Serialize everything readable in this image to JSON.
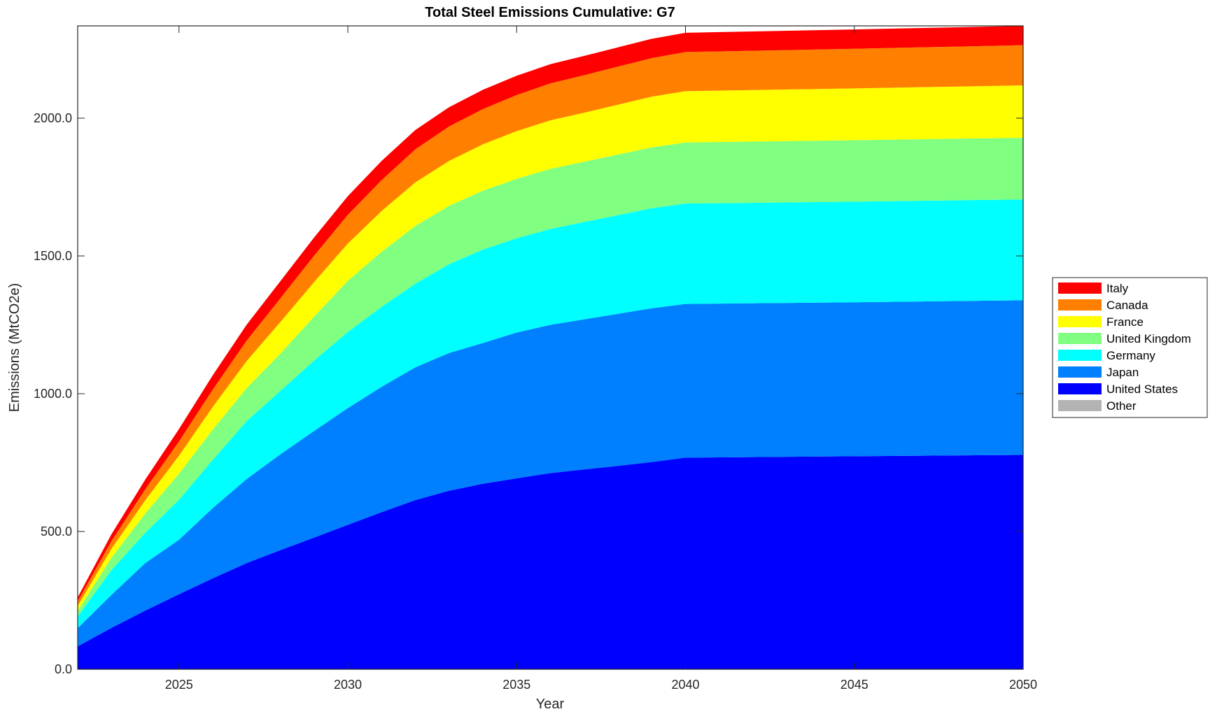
{
  "chart_data": {
    "type": "area",
    "stacked": true,
    "title": "Total Steel Emissions Cumulative: G7",
    "xlabel": "Year",
    "ylabel": "Emissions (MtCO2e)",
    "xlim": [
      2022,
      2050
    ],
    "ylim": [
      0,
      2335
    ],
    "xticks": [
      2025,
      2030,
      2035,
      2040,
      2045,
      2050
    ],
    "xtick_labels": [
      "2025",
      "2030",
      "2035",
      "2040",
      "2045",
      "2050"
    ],
    "yticks": [
      0,
      500,
      1000,
      1500,
      2000
    ],
    "ytick_labels": [
      "0.0",
      "500.0",
      "1000.0",
      "1500.0",
      "2000.0"
    ],
    "grid": false,
    "legend_position": "outside-right",
    "x": [
      2022,
      2023,
      2024,
      2025,
      2026,
      2027,
      2028,
      2029,
      2030,
      2031,
      2032,
      2033,
      2034,
      2035,
      2036,
      2037,
      2038,
      2039,
      2040,
      2045,
      2050
    ],
    "series": [
      {
        "name": "Other",
        "color": "#b3b3b3",
        "values": [
          0,
          0,
          0,
          0,
          0,
          0,
          0,
          0,
          0,
          0,
          0,
          0,
          0,
          0,
          0,
          0,
          0,
          0,
          0,
          0,
          0
        ]
      },
      {
        "name": "United States",
        "color": "#0000ff",
        "values": [
          83,
          150,
          213,
          272,
          330,
          385,
          432,
          478,
          524,
          570,
          614,
          648,
          673,
          693,
          712,
          725,
          738,
          752,
          768,
          773,
          778
        ]
      },
      {
        "name": "Japan",
        "color": "#0080ff",
        "values": [
          66,
          120,
          172,
          198,
          255,
          305,
          348,
          387,
          424,
          455,
          482,
          500,
          511,
          529,
          538,
          545,
          552,
          558,
          558,
          559,
          561
        ]
      },
      {
        "name": "Germany",
        "color": "#00ffff",
        "values": [
          42,
          90,
          110,
          145,
          175,
          210,
          230,
          255,
          276,
          290,
          303,
          322,
          339,
          342,
          348,
          353,
          358,
          363,
          364,
          365,
          366
        ]
      },
      {
        "name": "United Kingdom",
        "color": "#80ff80",
        "values": [
          21,
          45,
          70,
          95,
          110,
          120,
          135,
          160,
          186,
          200,
          210,
          212,
          214,
          216,
          218,
          219,
          220,
          221,
          222,
          223,
          224
        ]
      },
      {
        "name": "France",
        "color": "#ffff00",
        "values": [
          18,
          32,
          48,
          65,
          82,
          98,
          115,
          125,
          135,
          148,
          158,
          163,
          168,
          173,
          176,
          178,
          181,
          184,
          186,
          188,
          190
        ]
      },
      {
        "name": "Canada",
        "color": "#ff8000",
        "values": [
          17,
          28,
          40,
          52,
          63,
          74,
          86,
          96,
          104,
          112,
          120,
          125,
          128,
          131,
          134,
          136,
          138,
          140,
          142,
          144,
          146
        ]
      },
      {
        "name": "Italy",
        "color": "#ff0000",
        "values": [
          14,
          25,
          35,
          45,
          52,
          58,
          62,
          66,
          68,
          70,
          70,
          70,
          70,
          70,
          70,
          70,
          70,
          70,
          70,
          70,
          70
        ]
      }
    ],
    "legend_order": [
      "Italy",
      "Canada",
      "France",
      "United Kingdom",
      "Germany",
      "Japan",
      "United States",
      "Other"
    ]
  }
}
